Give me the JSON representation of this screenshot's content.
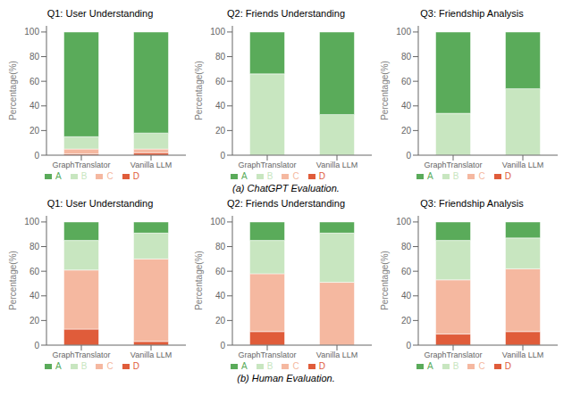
{
  "chart_data": [
    {
      "type": "bar",
      "title": "Q1: User Understanding",
      "stacked": true,
      "grid": false,
      "legend": "bottom",
      "ylabel": "Percentage(%)",
      "ylim": [
        0,
        105
      ],
      "yticks": [
        0,
        20,
        40,
        60,
        80,
        100
      ],
      "categories": [
        "GraphTranslator",
        "Vanilla LLM"
      ],
      "series": [
        {
          "name": "D",
          "color": "#e05c3a",
          "values": [
            1,
            2
          ]
        },
        {
          "name": "C",
          "color": "#f5b8a0",
          "values": [
            4,
            3
          ]
        },
        {
          "name": "B",
          "color": "#c8e6c0",
          "values": [
            10,
            13
          ]
        },
        {
          "name": "A",
          "color": "#5aab5a",
          "values": [
            85,
            82
          ]
        }
      ]
    },
    {
      "type": "bar",
      "title": "Q2: Friends Understanding",
      "stacked": true,
      "grid": false,
      "legend": "bottom",
      "ylabel": "Percentage(%)",
      "ylim": [
        0,
        105
      ],
      "yticks": [
        0,
        20,
        40,
        60,
        80,
        100
      ],
      "annotations": [
        "(a) ChatGPT Evaluation."
      ],
      "categories": [
        "GraphTranslator",
        "Vanilla LLM"
      ],
      "series": [
        {
          "name": "D",
          "color": "#e05c3a",
          "values": [
            0,
            0
          ]
        },
        {
          "name": "C",
          "color": "#f5b8a0",
          "values": [
            0,
            0
          ]
        },
        {
          "name": "B",
          "color": "#c8e6c0",
          "values": [
            66,
            33
          ]
        },
        {
          "name": "A",
          "color": "#5aab5a",
          "values": [
            34,
            67
          ]
        }
      ]
    },
    {
      "type": "bar",
      "title": "Q3: Friendship Analysis",
      "stacked": true,
      "grid": false,
      "legend": "bottom",
      "ylabel": "Percentage(%)",
      "ylim": [
        0,
        105
      ],
      "yticks": [
        0,
        20,
        40,
        60,
        80,
        100
      ],
      "categories": [
        "GraphTranslator",
        "Vanilla LLM"
      ],
      "series": [
        {
          "name": "D",
          "color": "#e05c3a",
          "values": [
            0,
            0
          ]
        },
        {
          "name": "C",
          "color": "#f5b8a0",
          "values": [
            0,
            0
          ]
        },
        {
          "name": "B",
          "color": "#c8e6c0",
          "values": [
            34,
            54
          ]
        },
        {
          "name": "A",
          "color": "#5aab5a",
          "values": [
            66,
            46
          ]
        }
      ]
    },
    {
      "type": "bar",
      "title": "Q1: User Understanding",
      "stacked": true,
      "grid": false,
      "legend": "bottom",
      "ylabel": "Percentage(%)",
      "ylim": [
        0,
        105
      ],
      "yticks": [
        0,
        20,
        40,
        60,
        80,
        100
      ],
      "categories": [
        "GraphTranslator",
        "Vanilla LLM"
      ],
      "series": [
        {
          "name": "D",
          "color": "#e05c3a",
          "values": [
            13,
            3
          ]
        },
        {
          "name": "C",
          "color": "#f5b8a0",
          "values": [
            48,
            67
          ]
        },
        {
          "name": "B",
          "color": "#c8e6c0",
          "values": [
            24,
            21
          ]
        },
        {
          "name": "A",
          "color": "#5aab5a",
          "values": [
            15,
            9
          ]
        }
      ]
    },
    {
      "type": "bar",
      "title": "Q2: Friends Understanding",
      "stacked": true,
      "grid": false,
      "legend": "bottom",
      "ylabel": "Percentage(%)",
      "ylim": [
        0,
        105
      ],
      "yticks": [
        0,
        20,
        40,
        60,
        80,
        100
      ],
      "annotations": [
        "(b) Human Evaluation."
      ],
      "categories": [
        "GraphTranslator",
        "Vanilla LLM"
      ],
      "series": [
        {
          "name": "D",
          "color": "#e05c3a",
          "values": [
            11,
            0
          ]
        },
        {
          "name": "C",
          "color": "#f5b8a0",
          "values": [
            47,
            51
          ]
        },
        {
          "name": "B",
          "color": "#c8e6c0",
          "values": [
            27,
            40
          ]
        },
        {
          "name": "A",
          "color": "#5aab5a",
          "values": [
            15,
            9
          ]
        }
      ]
    },
    {
      "type": "bar",
      "title": "Q3: Friendship Analysis",
      "stacked": true,
      "grid": false,
      "legend": "bottom",
      "ylabel": "Percentage(%)",
      "ylim": [
        0,
        105
      ],
      "yticks": [
        0,
        20,
        40,
        60,
        80,
        100
      ],
      "categories": [
        "GraphTranslator",
        "Vanilla LLM"
      ],
      "series": [
        {
          "name": "D",
          "color": "#e05c3a",
          "values": [
            9,
            11
          ]
        },
        {
          "name": "C",
          "color": "#f5b8a0",
          "values": [
            44,
            51
          ]
        },
        {
          "name": "B",
          "color": "#c8e6c0",
          "values": [
            32,
            25
          ]
        },
        {
          "name": "A",
          "color": "#5aab5a",
          "values": [
            15,
            13
          ]
        }
      ]
    }
  ]
}
